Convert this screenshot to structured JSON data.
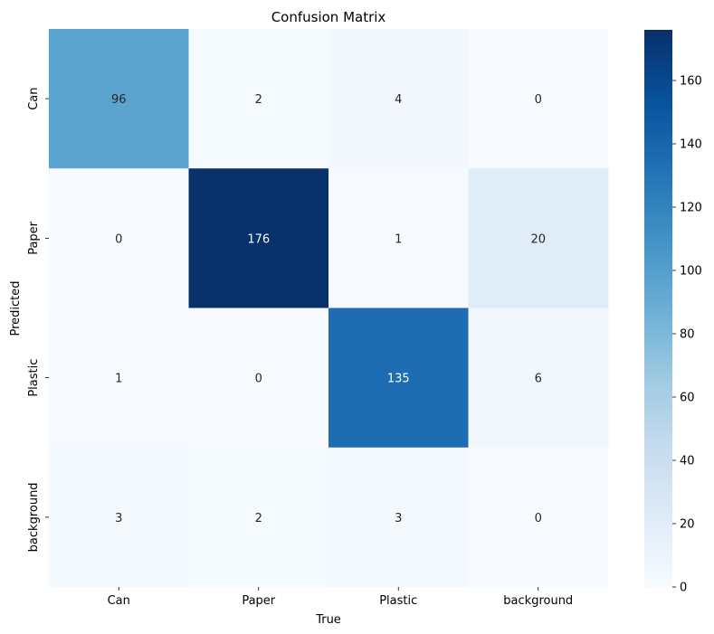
{
  "chart_data": {
    "type": "heatmap",
    "title": "Confusion Matrix",
    "xlabel": "True",
    "ylabel": "Predicted",
    "x_categories": [
      "Can",
      "Paper",
      "Plastic",
      "background"
    ],
    "y_categories": [
      "Can",
      "Paper",
      "Plastic",
      "background"
    ],
    "values": [
      [
        96,
        2,
        4,
        0
      ],
      [
        0,
        176,
        1,
        20
      ],
      [
        1,
        0,
        135,
        6
      ],
      [
        3,
        2,
        3,
        0
      ]
    ],
    "colorbar": {
      "min": 0,
      "max": 176,
      "ticks": [
        0,
        20,
        40,
        60,
        80,
        100,
        120,
        140,
        160
      ],
      "colormap": "Blues"
    }
  }
}
